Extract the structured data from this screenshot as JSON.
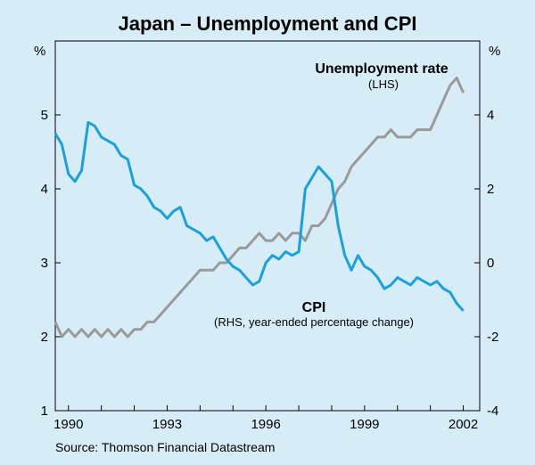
{
  "chart_data": {
    "type": "line",
    "title": "Japan – Unemployment and CPI",
    "source": "Source: Thomson Financial Datastream",
    "x_ticks": [
      "1990",
      "1993",
      "1996",
      "1999",
      "2002"
    ],
    "x_range": [
      1989.6,
      2002.5
    ],
    "left_axis": {
      "unit": "%",
      "range": [
        1,
        6
      ],
      "ticks": [
        "1",
        "2",
        "3",
        "4",
        "5"
      ]
    },
    "right_axis": {
      "unit": "%",
      "range": [
        -4,
        6
      ],
      "ticks": [
        "-4",
        "-2",
        "0",
        "2",
        "4"
      ]
    },
    "grid": false,
    "series": [
      {
        "name": "Unemployment rate",
        "name_detail": "(LHS)",
        "axis": "left",
        "color": "#9a9a9a",
        "x": [
          1989.6,
          1989.8,
          1990.0,
          1990.2,
          1990.4,
          1990.6,
          1990.8,
          1991.0,
          1991.2,
          1991.4,
          1991.6,
          1991.8,
          1992.0,
          1992.2,
          1992.4,
          1992.6,
          1992.8,
          1993.0,
          1993.2,
          1993.4,
          1993.6,
          1993.8,
          1994.0,
          1994.2,
          1994.4,
          1994.6,
          1994.8,
          1995.0,
          1995.2,
          1995.4,
          1995.6,
          1995.8,
          1996.0,
          1996.2,
          1996.4,
          1996.6,
          1996.8,
          1997.0,
          1997.2,
          1997.4,
          1997.6,
          1997.8,
          1998.0,
          1998.2,
          1998.4,
          1998.6,
          1998.8,
          1999.0,
          1999.2,
          1999.4,
          1999.6,
          1999.8,
          2000.0,
          2000.2,
          2000.4,
          2000.6,
          2000.8,
          2001.0,
          2001.2,
          2001.4,
          2001.6,
          2001.8,
          2002.0
        ],
        "y": [
          2.2,
          2.0,
          2.1,
          2.0,
          2.1,
          2.0,
          2.1,
          2.0,
          2.1,
          2.0,
          2.1,
          2.0,
          2.1,
          2.1,
          2.2,
          2.2,
          2.3,
          2.4,
          2.5,
          2.6,
          2.7,
          2.8,
          2.9,
          2.9,
          2.9,
          3.0,
          3.0,
          3.1,
          3.2,
          3.2,
          3.3,
          3.4,
          3.3,
          3.3,
          3.4,
          3.3,
          3.4,
          3.4,
          3.3,
          3.5,
          3.5,
          3.6,
          3.8,
          4.0,
          4.1,
          4.3,
          4.4,
          4.5,
          4.6,
          4.7,
          4.7,
          4.8,
          4.7,
          4.7,
          4.7,
          4.8,
          4.8,
          4.8,
          5.0,
          5.2,
          5.4,
          5.5,
          5.3
        ]
      },
      {
        "name": "CPI",
        "name_detail": "(RHS, year-ended percentage change)",
        "axis": "right",
        "color": "#1aa0dc",
        "x": [
          1989.6,
          1989.8,
          1990.0,
          1990.2,
          1990.4,
          1990.6,
          1990.8,
          1991.0,
          1991.2,
          1991.4,
          1991.6,
          1991.8,
          1992.0,
          1992.2,
          1992.4,
          1992.6,
          1992.8,
          1993.0,
          1993.2,
          1993.4,
          1993.6,
          1993.8,
          1994.0,
          1994.2,
          1994.4,
          1994.6,
          1994.8,
          1995.0,
          1995.2,
          1995.4,
          1995.6,
          1995.8,
          1996.0,
          1996.2,
          1996.4,
          1996.6,
          1996.8,
          1997.0,
          1997.2,
          1997.4,
          1997.6,
          1997.8,
          1998.0,
          1998.2,
          1998.4,
          1998.6,
          1998.8,
          1999.0,
          1999.2,
          1999.4,
          1999.6,
          1999.8,
          2000.0,
          2000.2,
          2000.4,
          2000.6,
          2000.8,
          2001.0,
          2001.2,
          2001.4,
          2001.6,
          2001.8,
          2002.0
        ],
        "y": [
          3.5,
          3.2,
          2.4,
          2.2,
          2.5,
          3.8,
          3.7,
          3.4,
          3.3,
          3.2,
          2.9,
          2.8,
          2.1,
          2.0,
          1.8,
          1.5,
          1.4,
          1.2,
          1.4,
          1.5,
          1.0,
          0.9,
          0.8,
          0.6,
          0.7,
          0.4,
          0.1,
          -0.1,
          -0.2,
          -0.4,
          -0.6,
          -0.5,
          0.0,
          0.2,
          0.1,
          0.3,
          0.2,
          0.3,
          2.0,
          2.3,
          2.6,
          2.4,
          2.2,
          1.0,
          0.2,
          -0.2,
          0.2,
          -0.1,
          -0.2,
          -0.4,
          -0.7,
          -0.6,
          -0.4,
          -0.5,
          -0.6,
          -0.4,
          -0.5,
          -0.6,
          -0.5,
          -0.7,
          -0.8,
          -1.1,
          -1.3
        ]
      }
    ]
  }
}
